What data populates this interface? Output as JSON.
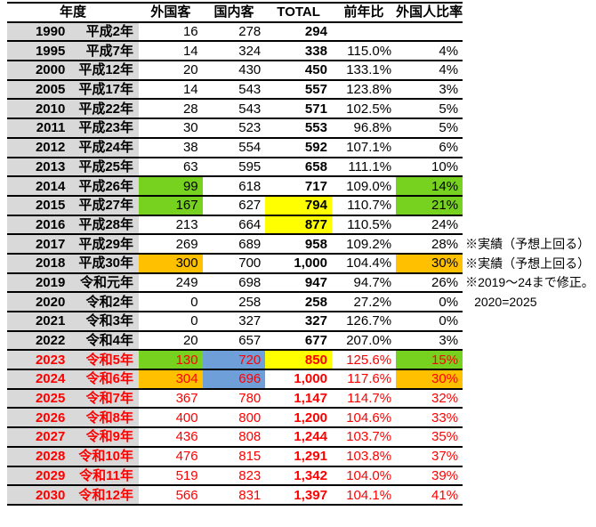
{
  "palette": {
    "green": "#76D21E",
    "yellow": "#FFFF00",
    "orange": "#FFC000",
    "blue": "#6F9FD8",
    "grey": "#D9D9D9",
    "red_text": "#FF0000",
    "border": "#000000"
  },
  "table": {
    "headers": {
      "year": "年度",
      "foreign": "外国客",
      "domestic": "国内客",
      "total": "TOTAL",
      "yoy": "前年比",
      "ratio": "外国人比率"
    },
    "rows": [
      {
        "year": "1990",
        "era": "平成2年",
        "foreign": "16",
        "domestic": "278",
        "total": "294",
        "yoy": "",
        "ratio": "",
        "red": false,
        "fills": {},
        "note": "",
        "note_indent": false
      },
      {
        "year": "1995",
        "era": "平成7年",
        "foreign": "14",
        "domestic": "324",
        "total": "338",
        "yoy": "115.0%",
        "ratio": "4%",
        "red": false,
        "fills": {},
        "note": "",
        "note_indent": false
      },
      {
        "year": "2000",
        "era": "平成12年",
        "foreign": "20",
        "domestic": "430",
        "total": "450",
        "yoy": "133.1%",
        "ratio": "4%",
        "red": false,
        "fills": {},
        "note": "",
        "note_indent": false
      },
      {
        "year": "2005",
        "era": "平成17年",
        "foreign": "14",
        "domestic": "543",
        "total": "557",
        "yoy": "123.8%",
        "ratio": "3%",
        "red": false,
        "fills": {},
        "note": "",
        "note_indent": false
      },
      {
        "year": "2010",
        "era": "平成22年",
        "foreign": "28",
        "domestic": "543",
        "total": "571",
        "yoy": "102.5%",
        "ratio": "5%",
        "red": false,
        "fills": {},
        "note": "",
        "note_indent": false
      },
      {
        "year": "2011",
        "era": "平成23年",
        "foreign": "30",
        "domestic": "523",
        "total": "553",
        "yoy": "96.8%",
        "ratio": "5%",
        "red": false,
        "fills": {},
        "note": "",
        "note_indent": false
      },
      {
        "year": "2012",
        "era": "平成24年",
        "foreign": "38",
        "domestic": "554",
        "total": "592",
        "yoy": "107.1%",
        "ratio": "6%",
        "red": false,
        "fills": {},
        "note": "",
        "note_indent": false
      },
      {
        "year": "2013",
        "era": "平成25年",
        "foreign": "63",
        "domestic": "595",
        "total": "658",
        "yoy": "111.1%",
        "ratio": "10%",
        "red": false,
        "fills": {},
        "note": "",
        "note_indent": false
      },
      {
        "year": "2014",
        "era": "平成26年",
        "foreign": "99",
        "domestic": "618",
        "total": "717",
        "yoy": "109.0%",
        "ratio": "14%",
        "red": false,
        "fills": {
          "foreign": "green",
          "ratio": "green"
        },
        "note": "",
        "note_indent": false
      },
      {
        "year": "2015",
        "era": "平成27年",
        "foreign": "167",
        "domestic": "627",
        "total": "794",
        "yoy": "110.7%",
        "ratio": "21%",
        "red": false,
        "fills": {
          "foreign": "green",
          "total": "yellow",
          "ratio": "green"
        },
        "note": "",
        "note_indent": false
      },
      {
        "year": "2016",
        "era": "平成28年",
        "foreign": "213",
        "domestic": "664",
        "total": "877",
        "yoy": "110.5%",
        "ratio": "24%",
        "red": false,
        "fills": {
          "total": "yellow"
        },
        "note": "",
        "note_indent": false
      },
      {
        "year": "2017",
        "era": "平成29年",
        "foreign": "269",
        "domestic": "689",
        "total": "958",
        "yoy": "109.2%",
        "ratio": "28%",
        "red": false,
        "fills": {},
        "note": "※実績（予想上回る）",
        "note_indent": false
      },
      {
        "year": "2018",
        "era": "平成30年",
        "foreign": "300",
        "domestic": "700",
        "total": "1,000",
        "yoy": "104.4%",
        "ratio": "30%",
        "red": false,
        "fills": {
          "foreign": "orange",
          "ratio": "orange"
        },
        "note": "※実績（予想上回る）",
        "note_indent": false
      },
      {
        "year": "2019",
        "era": "令和元年",
        "foreign": "249",
        "domestic": "698",
        "total": "947",
        "yoy": "94.7%",
        "ratio": "26%",
        "red": false,
        "fills": {},
        "note": "※2019～24まで修正。",
        "note_indent": false
      },
      {
        "year": "2020",
        "era": "令和2年",
        "foreign": "0",
        "domestic": "258",
        "total": "258",
        "yoy": "27.2%",
        "ratio": "0%",
        "red": false,
        "fills": {},
        "note": "2020=2025",
        "note_indent": true
      },
      {
        "year": "2021",
        "era": "令和3年",
        "foreign": "0",
        "domestic": "327",
        "total": "327",
        "yoy": "126.7%",
        "ratio": "0%",
        "red": false,
        "fills": {},
        "note": "",
        "note_indent": false
      },
      {
        "year": "2022",
        "era": "令和4年",
        "foreign": "20",
        "domestic": "657",
        "total": "677",
        "yoy": "207.0%",
        "ratio": "3%",
        "red": false,
        "fills": {},
        "note": "",
        "note_indent": false
      },
      {
        "year": "2023",
        "era": "令和5年",
        "foreign": "130",
        "domestic": "720",
        "total": "850",
        "yoy": "125.6%",
        "ratio": "15%",
        "red": true,
        "fills": {
          "foreign": "green",
          "domestic": "blue",
          "total": "yellow",
          "ratio": "green"
        },
        "note": "",
        "note_indent": false
      },
      {
        "year": "2024",
        "era": "令和6年",
        "foreign": "304",
        "domestic": "696",
        "total": "1,000",
        "yoy": "117.6%",
        "ratio": "30%",
        "red": true,
        "fills": {
          "foreign": "orange",
          "domestic": "blue",
          "ratio": "orange"
        },
        "note": "",
        "note_indent": false
      },
      {
        "year": "2025",
        "era": "令和7年",
        "foreign": "367",
        "domestic": "780",
        "total": "1,147",
        "yoy": "114.7%",
        "ratio": "32%",
        "red": true,
        "fills": {},
        "note": "",
        "note_indent": false
      },
      {
        "year": "2026",
        "era": "令和8年",
        "foreign": "400",
        "domestic": "800",
        "total": "1,200",
        "yoy": "104.6%",
        "ratio": "33%",
        "red": true,
        "fills": {},
        "note": "",
        "note_indent": false
      },
      {
        "year": "2027",
        "era": "令和9年",
        "foreign": "436",
        "domestic": "808",
        "total": "1,244",
        "yoy": "103.7%",
        "ratio": "35%",
        "red": true,
        "fills": {},
        "note": "",
        "note_indent": false
      },
      {
        "year": "2028",
        "era": "令和10年",
        "foreign": "476",
        "domestic": "815",
        "total": "1,291",
        "yoy": "103.8%",
        "ratio": "37%",
        "red": true,
        "fills": {},
        "note": "",
        "note_indent": false
      },
      {
        "year": "2029",
        "era": "令和11年",
        "foreign": "519",
        "domestic": "823",
        "total": "1,342",
        "yoy": "104.0%",
        "ratio": "39%",
        "red": true,
        "fills": {},
        "note": "",
        "note_indent": false
      },
      {
        "year": "2030",
        "era": "令和12年",
        "foreign": "566",
        "domestic": "831",
        "total": "1,397",
        "yoy": "104.1%",
        "ratio": "41%",
        "red": true,
        "fills": {},
        "note": "",
        "note_indent": false
      }
    ]
  }
}
